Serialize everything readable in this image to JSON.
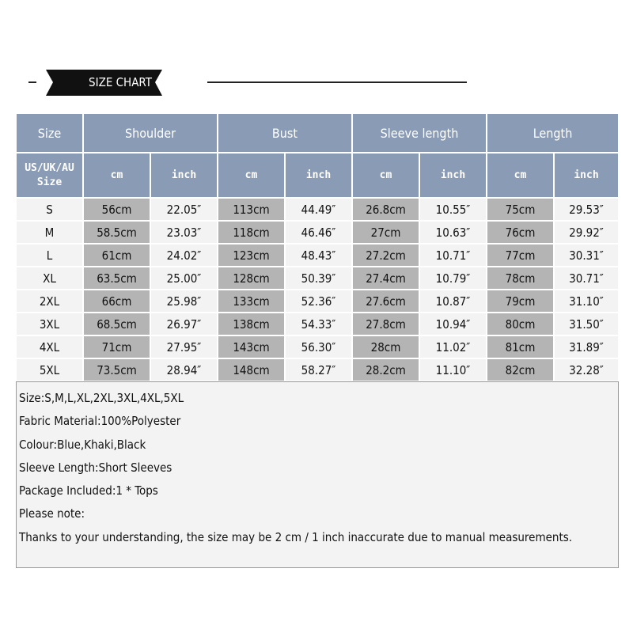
{
  "header": {
    "title": "SIZE CHART"
  },
  "table": {
    "header": [
      "Size",
      "Shoulder",
      "Bust",
      "Sleeve length",
      "Length"
    ],
    "subheader": [
      "US/UK/AU Size",
      "cm",
      "inch",
      "cm",
      "inch",
      "cm",
      "inch",
      "cm",
      "inch"
    ],
    "rows": [
      [
        "S",
        "56cm",
        "22.05″",
        "113cm",
        "44.49″",
        "26.8cm",
        "10.55″",
        "75cm",
        "29.53″"
      ],
      [
        "M",
        "58.5cm",
        "23.03″",
        "118cm",
        "46.46″",
        "27cm",
        "10.63″",
        "76cm",
        "29.92″"
      ],
      [
        "L",
        "61cm",
        "24.02″",
        "123cm",
        "48.43″",
        "27.2cm",
        "10.71″",
        "77cm",
        "30.31″"
      ],
      [
        "XL",
        "63.5cm",
        "25.00″",
        "128cm",
        "50.39″",
        "27.4cm",
        "10.79″",
        "78cm",
        "30.71″"
      ],
      [
        "2XL",
        "66cm",
        "25.98″",
        "133cm",
        "52.36″",
        "27.6cm",
        "10.87″",
        "79cm",
        "31.10″"
      ],
      [
        "3XL",
        "68.5cm",
        "26.97″",
        "138cm",
        "54.33″",
        "27.8cm",
        "10.94″",
        "80cm",
        "31.50″"
      ],
      [
        "4XL",
        "71cm",
        "27.95″",
        "143cm",
        "56.30″",
        "28cm",
        "11.02″",
        "81cm",
        "31.89″"
      ],
      [
        "5XL",
        "73.5cm",
        "28.94″",
        "148cm",
        "58.27″",
        "28.2cm",
        "11.10″",
        "82cm",
        "32.28″"
      ]
    ]
  },
  "notes": [
    "Size:S,M,L,XL,2XL,3XL,4XL,5XL",
    "Fabric Material:100%Polyester",
    "Colour:Blue,Khaki,Black",
    "Sleeve Length:Short Sleeves",
    "Package Included:1 * Tops",
    "Please note:",
    "Thanks to your understanding, the size may be 2 cm / 1 inch inaccurate due to manual measurements."
  ]
}
